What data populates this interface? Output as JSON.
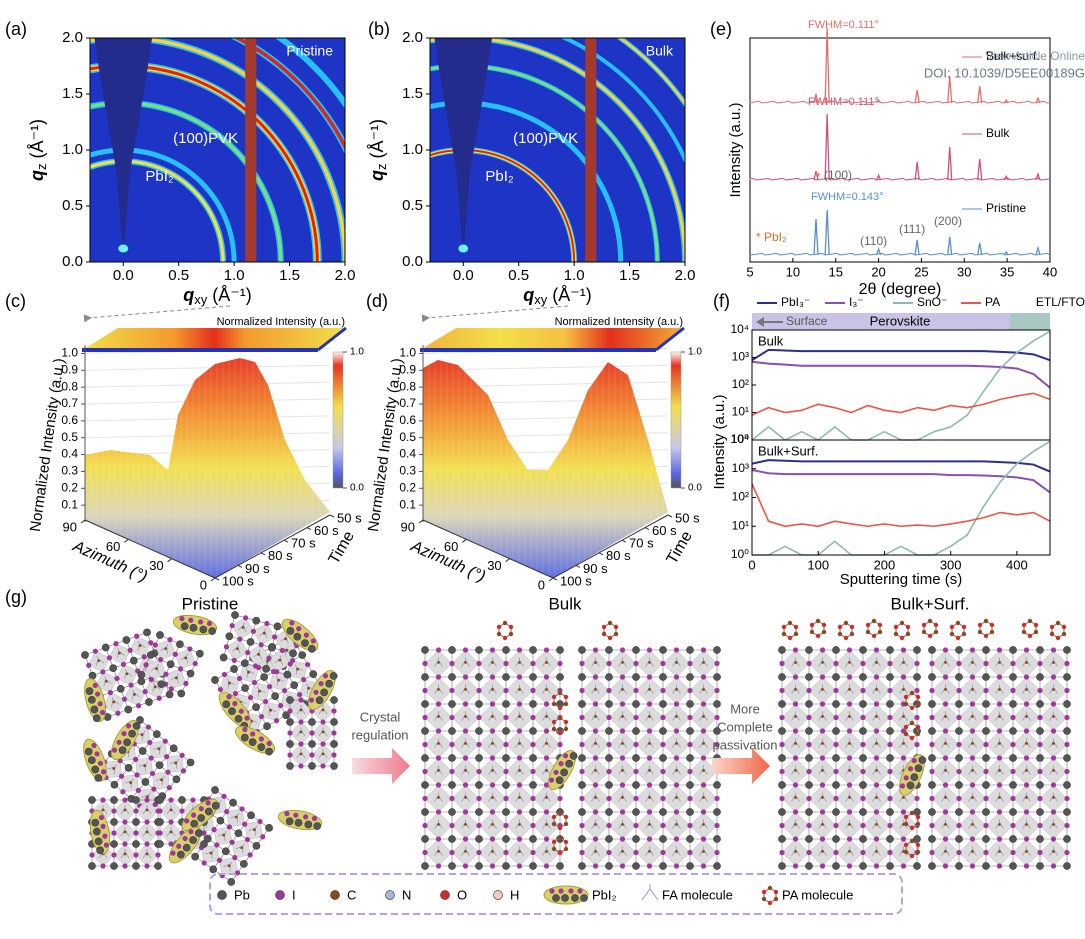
{
  "figure": {
    "panel_labels": [
      "(a)",
      "(b)",
      "(c)",
      "(d)",
      "(e)",
      "(f)",
      "(g)"
    ],
    "watermark": [
      "View Article Online",
      "DOI: 10.1039/D5EE00189G"
    ]
  },
  "chart_data": [
    {
      "type": "heatmap",
      "title": "Pristine",
      "annotations": [
        "(100)PVK",
        "PbI₂"
      ],
      "x_label": {
        "symbol": "q",
        "subscript": "xy",
        "unit": "(Å⁻¹)"
      },
      "y_label": {
        "symbol": "q",
        "subscript": "z",
        "unit": "(Å⁻¹)"
      },
      "xlim": [
        -0.3,
        2.0
      ],
      "ylim": [
        0,
        2.0
      ],
      "xticks": [
        {
          "value": 0,
          "label": "0.0"
        },
        0.5,
        {
          "value": 1,
          "label": "1.0"
        },
        1.5,
        {
          "value": 2,
          "label": "2.0"
        }
      ],
      "yticks": [
        {
          "value": 0,
          "label": "0.0"
        },
        0.5,
        {
          "value": 1,
          "label": "1.0"
        },
        1.5,
        {
          "value": 2,
          "label": "2.0"
        }
      ]
    },
    {
      "type": "heatmap",
      "title": "Bulk",
      "annotations": [
        "(100)PVK",
        "PbI₂"
      ],
      "x_label": {
        "symbol": "q",
        "subscript": "xy",
        "unit": "(Å⁻¹)"
      },
      "y_label": {
        "symbol": "q",
        "subscript": "z",
        "unit": "(Å⁻¹)"
      },
      "xlim": [
        -0.3,
        2.0
      ],
      "ylim": [
        0,
        2.0
      ],
      "xticks": [
        {
          "value": 0,
          "label": "0.0"
        },
        0.5,
        {
          "value": 1,
          "label": "1.0"
        },
        1.5,
        {
          "value": 2,
          "label": "2.0"
        }
      ],
      "yticks": [
        {
          "value": 0,
          "label": "0.0"
        },
        0.5,
        {
          "value": 1,
          "label": "1.0"
        },
        1.5,
        {
          "value": 2,
          "label": "2.0"
        }
      ]
    },
    {
      "type": "surface3d",
      "colorbar_label": "Normalized Intensity (a.u.)",
      "z_label": "Normalized Intensity (a.u.)",
      "x_label": "Azimuth (°)",
      "y_label": "Time",
      "zlim": [
        0,
        1.05
      ],
      "zticks": [
        0.1,
        0.2,
        0.3,
        0.4,
        0.5,
        0.6,
        0.7,
        0.8,
        0.9,
        {
          "value": 1,
          "label": "1.0"
        }
      ],
      "colorbar_ticks": [
        {
          "value": 1,
          "label": "1.0"
        },
        {
          "value": 0,
          "label": "0.0"
        }
      ],
      "xlim": [
        0,
        90
      ],
      "xticks": [
        0,
        30,
        60,
        90
      ],
      "ylim": [
        50,
        100
      ],
      "yticks": [
        {
          "value": 50,
          "label": "50 s"
        },
        {
          "value": 60,
          "label": "60 s"
        },
        {
          "value": 70,
          "label": "70 s"
        },
        {
          "value": 80,
          "label": "80 s"
        },
        {
          "value": 90,
          "label": "90 s"
        },
        {
          "value": 100,
          "label": "100 s"
        }
      ]
    },
    {
      "type": "surface3d",
      "colorbar_label": "Normalized Intensity (a.u.)",
      "z_label": "Normalized Intensity (a.u.)",
      "x_label": "Azimuth (°)",
      "y_label": "Time",
      "zlim": [
        0,
        1.05
      ],
      "zticks": [
        0.1,
        0.2,
        0.3,
        0.4,
        0.5,
        0.6,
        0.7,
        0.8,
        0.9,
        {
          "value": 1,
          "label": "1.0"
        }
      ],
      "colorbar_ticks": [
        {
          "value": 1,
          "label": "1.0"
        },
        {
          "value": 0,
          "label": "0.0"
        }
      ],
      "xlim": [
        0,
        90
      ],
      "xticks": [
        0,
        30,
        60,
        90
      ],
      "ylim": [
        50,
        100
      ],
      "yticks": [
        {
          "value": 50,
          "label": "50 s"
        },
        {
          "value": 60,
          "label": "60 s"
        },
        {
          "value": 70,
          "label": "70 s"
        },
        {
          "value": 80,
          "label": "80 s"
        },
        {
          "value": 90,
          "label": "90 s"
        },
        {
          "value": 100,
          "label": "100 s"
        }
      ]
    },
    {
      "type": "xrd",
      "x_label": "2θ (degree)",
      "y_label": "Intensity (a.u.)",
      "xlim": [
        5,
        40
      ],
      "xticks": [
        5,
        10,
        15,
        20,
        25,
        30,
        35,
        40
      ],
      "peak_positions": [
        12.7,
        14.0,
        20.0,
        24.5,
        28.3,
        31.8,
        34.9,
        38.6
      ],
      "peak_labels": [
        "(100)",
        "(110)",
        "(111)",
        "(200)"
      ],
      "pbi2_marker": "*",
      "pbi2_label": "PbI₂",
      "series": [
        {
          "name": "Pristine",
          "color": "#5b8fc9",
          "fwhm": "FWHM=0.143°",
          "values": [
            60,
            75,
            10,
            25,
            30,
            20,
            5,
            12
          ]
        },
        {
          "name": "Bulk",
          "color": "#d0507a",
          "fwhm": "FWHM=0.111°",
          "values": [
            15,
            110,
            8,
            30,
            55,
            35,
            6,
            10
          ]
        },
        {
          "name": "Bulk+surf.",
          "color": "#e07070",
          "fwhm": "FWHM=0.111°",
          "values": [
            15,
            125,
            5,
            22,
            45,
            28,
            5,
            8
          ]
        }
      ]
    },
    {
      "type": "line",
      "log_y": true,
      "x_label": "Sputtering time (s)",
      "y_label": "Intensity (a.u.)",
      "xlim": [
        0,
        450
      ],
      "xticks": [
        0,
        100,
        200,
        300,
        400
      ],
      "ylim": [
        1,
        10000
      ],
      "yticks": [
        {
          "value": 1,
          "label": "10⁰"
        },
        {
          "value": 10,
          "label": "10¹"
        },
        {
          "value": 100,
          "label": "10²"
        },
        {
          "value": 1000,
          "label": "10³"
        },
        {
          "value": 10000,
          "label": "10⁴"
        }
      ],
      "layer_labels": [
        "Surface",
        "Perovskite",
        "ETL/FTO"
      ],
      "x": [
        0,
        25,
        50,
        75,
        100,
        125,
        150,
        175,
        200,
        225,
        250,
        275,
        300,
        325,
        350,
        375,
        400,
        425,
        450
      ],
      "subplots": [
        {
          "title": "Bulk",
          "series": [
            {
              "name": "PbI₃⁻",
              "color": "#2b2f8a",
              "values": [
                800,
                1900,
                1800,
                1700,
                1700,
                1700,
                1700,
                1700,
                1700,
                1700,
                1700,
                1700,
                1700,
                1700,
                1700,
                1600,
                1500,
                1300,
                800
              ]
            },
            {
              "name": "I₃⁻",
              "color": "#8b4fb0",
              "values": [
                700,
                600,
                550,
                500,
                500,
                500,
                500,
                500,
                500,
                500,
                500,
                500,
                500,
                500,
                480,
                450,
                400,
                250,
                80
              ]
            },
            {
              "name": "SnO⁻",
              "color": "#8fb8b5",
              "values": [
                1,
                3,
                1,
                2,
                1,
                3,
                1,
                1,
                2,
                1,
                1,
                2,
                3,
                8,
                60,
                400,
                1500,
                4000,
                9000
              ]
            },
            {
              "name": "PA",
              "color": "#e8574a",
              "values": [
                8,
                15,
                10,
                12,
                20,
                15,
                10,
                18,
                12,
                10,
                15,
                12,
                18,
                15,
                20,
                30,
                40,
                50,
                30
              ]
            }
          ]
        },
        {
          "title": "Bulk+Surf.",
          "series": [
            {
              "name": "PbI₃⁻",
              "color": "#2b2f8a",
              "values": [
                1500,
                2000,
                1900,
                1800,
                1800,
                1800,
                1800,
                1800,
                1800,
                1800,
                1800,
                1800,
                1800,
                1800,
                1800,
                1700,
                1600,
                1400,
                800
              ]
            },
            {
              "name": "I₃⁻",
              "color": "#8b4fb0",
              "values": [
                900,
                700,
                650,
                650,
                650,
                650,
                650,
                650,
                650,
                650,
                650,
                650,
                600,
                600,
                580,
                550,
                500,
                400,
                150
              ]
            },
            {
              "name": "SnO⁻",
              "color": "#8fb8b5",
              "values": [
                1,
                1,
                2,
                1,
                1,
                3,
                1,
                1,
                1,
                2,
                1,
                1,
                2,
                5,
                50,
                350,
                1500,
                4000,
                9000
              ]
            },
            {
              "name": "PA",
              "color": "#e8574a",
              "values": [
                300,
                15,
                10,
                12,
                10,
                15,
                12,
                10,
                12,
                10,
                11,
                10,
                12,
                15,
                20,
                30,
                25,
                30,
                15
              ]
            }
          ]
        }
      ]
    }
  ],
  "schematic": {
    "titles": [
      "Pristine",
      "Bulk",
      "Bulk+Surf."
    ],
    "arrows": [
      [
        "Crystal",
        "regulation"
      ],
      [
        "More",
        "Complete",
        "passivation"
      ]
    ],
    "legend": [
      "Pb",
      "I",
      "C",
      "N",
      "O",
      "H",
      "PbI₂",
      "FA molecule",
      "PA molecule"
    ]
  }
}
